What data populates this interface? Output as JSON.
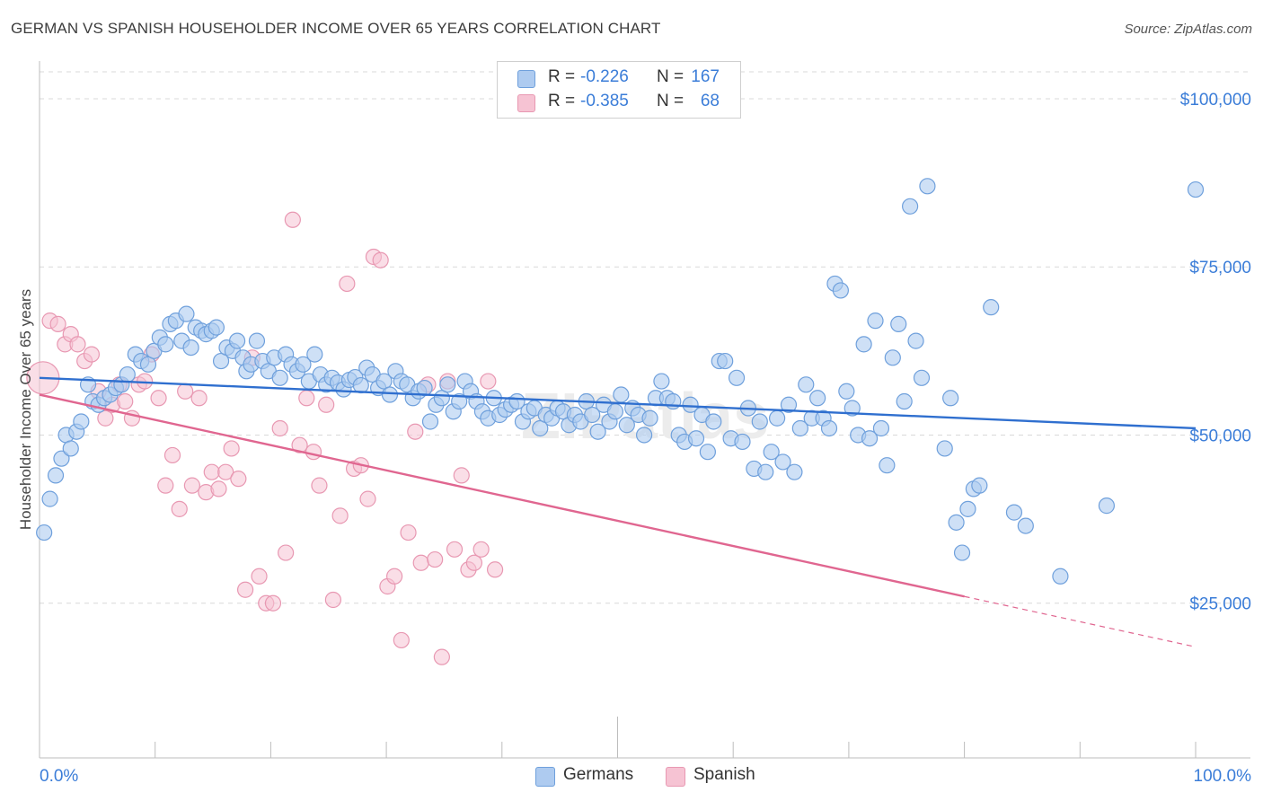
{
  "title": "GERMAN VS SPANISH HOUSEHOLDER INCOME OVER 65 YEARS CORRELATION CHART",
  "source": "Source: ZipAtlas.com",
  "watermark": "ZIPatlas",
  "colors": {
    "germans_fill": "#aecbf0",
    "germans_stroke": "#6fa0dc",
    "germans_line": "#2f6fcf",
    "spanish_fill": "#f6c3d3",
    "spanish_stroke": "#e898b2",
    "spanish_line": "#e06690",
    "axis_text": "#3b7dd8",
    "grid": "#d9d9d9"
  },
  "legend": {
    "rows": [
      {
        "series": "Germans",
        "r_label": "R =",
        "r_value": "-0.226",
        "n_label": "N =",
        "n_value": "167"
      },
      {
        "series": "Spanish",
        "r_label": "R =",
        "r_value": "-0.385",
        "n_label": "N =",
        "n_value": "68"
      }
    ]
  },
  "bottom_legend": {
    "germans": "Germans",
    "spanish": "Spanish"
  },
  "chart_data": {
    "type": "scatter",
    "title": "GERMAN VS SPANISH HOUSEHOLDER INCOME OVER 65 YEARS CORRELATION CHART",
    "xlabel": "",
    "ylabel": "Householder Income Over 65 years",
    "xlim": [
      0,
      100
    ],
    "ylim": [
      2000,
      104000
    ],
    "x_tick_labels": [
      "0.0%",
      "100.0%"
    ],
    "y_ticks": [
      25000,
      50000,
      75000,
      100000
    ],
    "y_tick_labels": [
      "$25,000",
      "$50,000",
      "$75,000",
      "$100,000"
    ],
    "grid": true,
    "legend_position": "top-center",
    "series": [
      {
        "name": "Germans",
        "trend": {
          "x": [
            0,
            100
          ],
          "y": [
            58500,
            51000
          ]
        },
        "points": [
          [
            0.4,
            35500
          ],
          [
            0.9,
            40500
          ],
          [
            1.4,
            44000
          ],
          [
            1.9,
            46500
          ],
          [
            2.3,
            50000
          ],
          [
            2.7,
            48000
          ],
          [
            3.2,
            50500
          ],
          [
            3.6,
            52000
          ],
          [
            4.2,
            57500
          ],
          [
            4.6,
            55000
          ],
          [
            5.1,
            54500
          ],
          [
            5.6,
            55500
          ],
          [
            6.1,
            56000
          ],
          [
            6.6,
            57000
          ],
          [
            7.1,
            57500
          ],
          [
            7.6,
            59000
          ],
          [
            8.3,
            62000
          ],
          [
            8.8,
            61000
          ],
          [
            9.4,
            60500
          ],
          [
            9.9,
            62500
          ],
          [
            10.4,
            64500
          ],
          [
            10.9,
            63500
          ],
          [
            11.3,
            66500
          ],
          [
            11.8,
            67000
          ],
          [
            12.3,
            64000
          ],
          [
            12.7,
            68000
          ],
          [
            13.1,
            63000
          ],
          [
            13.5,
            66000
          ],
          [
            14.0,
            65500
          ],
          [
            14.4,
            65000
          ],
          [
            14.9,
            65500
          ],
          [
            15.3,
            66000
          ],
          [
            15.7,
            61000
          ],
          [
            16.2,
            63000
          ],
          [
            16.7,
            62500
          ],
          [
            17.1,
            64000
          ],
          [
            17.6,
            61500
          ],
          [
            17.9,
            59500
          ],
          [
            18.3,
            60500
          ],
          [
            18.8,
            64000
          ],
          [
            19.3,
            61000
          ],
          [
            19.8,
            59500
          ],
          [
            20.3,
            61500
          ],
          [
            20.8,
            58500
          ],
          [
            21.3,
            62000
          ],
          [
            21.8,
            60500
          ],
          [
            22.3,
            59500
          ],
          [
            22.8,
            60500
          ],
          [
            23.3,
            58000
          ],
          [
            23.8,
            62000
          ],
          [
            24.3,
            59000
          ],
          [
            24.8,
            57500
          ],
          [
            25.3,
            58500
          ],
          [
            25.8,
            57800
          ],
          [
            26.3,
            56800
          ],
          [
            26.8,
            58200
          ],
          [
            27.3,
            58600
          ],
          [
            27.8,
            57400
          ],
          [
            28.3,
            60000
          ],
          [
            28.8,
            59000
          ],
          [
            29.3,
            57000
          ],
          [
            29.8,
            58000
          ],
          [
            30.3,
            56000
          ],
          [
            30.8,
            59500
          ],
          [
            31.3,
            58000
          ],
          [
            31.8,
            57500
          ],
          [
            32.3,
            55500
          ],
          [
            32.8,
            56500
          ],
          [
            33.3,
            57000
          ],
          [
            33.8,
            52000
          ],
          [
            34.3,
            54500
          ],
          [
            34.8,
            55500
          ],
          [
            35.3,
            57500
          ],
          [
            35.8,
            53500
          ],
          [
            36.3,
            55000
          ],
          [
            36.8,
            58000
          ],
          [
            37.3,
            56500
          ],
          [
            37.8,
            55000
          ],
          [
            38.3,
            53500
          ],
          [
            38.8,
            52500
          ],
          [
            39.3,
            55500
          ],
          [
            39.8,
            53000
          ],
          [
            40.3,
            53800
          ],
          [
            40.8,
            54500
          ],
          [
            41.3,
            55000
          ],
          [
            41.8,
            52000
          ],
          [
            42.3,
            53500
          ],
          [
            42.8,
            54000
          ],
          [
            43.3,
            51000
          ],
          [
            43.8,
            53000
          ],
          [
            44.3,
            52500
          ],
          [
            44.8,
            54000
          ],
          [
            45.3,
            53500
          ],
          [
            45.8,
            51500
          ],
          [
            46.3,
            53000
          ],
          [
            46.8,
            52000
          ],
          [
            47.3,
            55000
          ],
          [
            47.8,
            53000
          ],
          [
            48.3,
            50500
          ],
          [
            48.8,
            54500
          ],
          [
            49.3,
            52000
          ],
          [
            49.8,
            53500
          ],
          [
            50.3,
            56000
          ],
          [
            50.8,
            51500
          ],
          [
            51.3,
            54000
          ],
          [
            51.8,
            53000
          ],
          [
            52.3,
            50000
          ],
          [
            52.8,
            52500
          ],
          [
            53.3,
            55500
          ],
          [
            53.8,
            58000
          ],
          [
            54.3,
            55500
          ],
          [
            54.8,
            55000
          ],
          [
            55.3,
            50000
          ],
          [
            55.8,
            49000
          ],
          [
            56.3,
            54500
          ],
          [
            56.8,
            49500
          ],
          [
            57.3,
            53000
          ],
          [
            57.8,
            47500
          ],
          [
            58.3,
            52000
          ],
          [
            58.8,
            61000
          ],
          [
            59.3,
            61000
          ],
          [
            59.8,
            49500
          ],
          [
            60.3,
            58500
          ],
          [
            60.8,
            49000
          ],
          [
            61.3,
            54000
          ],
          [
            61.8,
            45000
          ],
          [
            62.3,
            52000
          ],
          [
            62.8,
            44500
          ],
          [
            63.3,
            47500
          ],
          [
            63.8,
            52500
          ],
          [
            64.3,
            46000
          ],
          [
            64.8,
            54500
          ],
          [
            65.3,
            44500
          ],
          [
            65.8,
            51000
          ],
          [
            66.3,
            57500
          ],
          [
            66.8,
            52500
          ],
          [
            67.3,
            55500
          ],
          [
            67.8,
            52500
          ],
          [
            68.3,
            51000
          ],
          [
            68.8,
            72500
          ],
          [
            69.3,
            71500
          ],
          [
            69.8,
            56500
          ],
          [
            70.3,
            54000
          ],
          [
            70.8,
            50000
          ],
          [
            71.3,
            63500
          ],
          [
            71.8,
            49500
          ],
          [
            72.3,
            67000
          ],
          [
            72.8,
            51000
          ],
          [
            73.3,
            45500
          ],
          [
            73.8,
            61500
          ],
          [
            74.3,
            66500
          ],
          [
            74.8,
            55000
          ],
          [
            75.3,
            84000
          ],
          [
            75.8,
            64000
          ],
          [
            76.3,
            58500
          ],
          [
            76.8,
            87000
          ],
          [
            78.3,
            48000
          ],
          [
            78.8,
            55500
          ],
          [
            79.3,
            37000
          ],
          [
            79.8,
            32500
          ],
          [
            80.3,
            39000
          ],
          [
            80.8,
            42000
          ],
          [
            81.3,
            42500
          ],
          [
            82.3,
            69000
          ],
          [
            84.3,
            38500
          ],
          [
            85.3,
            36500
          ],
          [
            88.3,
            29000
          ],
          [
            92.3,
            39500
          ],
          [
            100.0,
            86500
          ]
        ]
      },
      {
        "name": "Spanish",
        "trend": {
          "x": [
            0,
            80
          ],
          "y": [
            56000,
            26000
          ]
        },
        "trend_dashed_extension": {
          "x": [
            80,
            100
          ],
          "y": [
            26000,
            18500
          ]
        },
        "points": [
          [
            0.3,
            58500
          ],
          [
            0.9,
            67000
          ],
          [
            1.6,
            66500
          ],
          [
            2.2,
            63500
          ],
          [
            2.7,
            65000
          ],
          [
            3.3,
            63500
          ],
          [
            3.9,
            61000
          ],
          [
            4.5,
            62000
          ],
          [
            5.1,
            56500
          ],
          [
            5.7,
            52500
          ],
          [
            6.3,
            54500
          ],
          [
            6.9,
            57500
          ],
          [
            7.4,
            55000
          ],
          [
            8.0,
            52500
          ],
          [
            8.6,
            57500
          ],
          [
            9.1,
            58000
          ],
          [
            9.7,
            62000
          ],
          [
            10.3,
            55500
          ],
          [
            10.9,
            42500
          ],
          [
            11.5,
            47000
          ],
          [
            12.1,
            39000
          ],
          [
            12.6,
            56500
          ],
          [
            13.2,
            42500
          ],
          [
            13.8,
            55500
          ],
          [
            14.4,
            41500
          ],
          [
            14.9,
            44500
          ],
          [
            15.5,
            42000
          ],
          [
            16.1,
            44500
          ],
          [
            16.6,
            48000
          ],
          [
            17.2,
            43500
          ],
          [
            17.8,
            27000
          ],
          [
            18.4,
            61500
          ],
          [
            19.0,
            29000
          ],
          [
            19.6,
            25000
          ],
          [
            20.2,
            25000
          ],
          [
            20.8,
            51000
          ],
          [
            21.3,
            32500
          ],
          [
            21.9,
            82000
          ],
          [
            22.5,
            48500
          ],
          [
            23.1,
            55500
          ],
          [
            23.7,
            47500
          ],
          [
            24.2,
            42500
          ],
          [
            24.8,
            54500
          ],
          [
            25.4,
            25500
          ],
          [
            26.0,
            38000
          ],
          [
            26.6,
            72500
          ],
          [
            27.2,
            45000
          ],
          [
            27.8,
            45500
          ],
          [
            28.4,
            40500
          ],
          [
            28.9,
            76500
          ],
          [
            29.5,
            76000
          ],
          [
            30.1,
            27500
          ],
          [
            30.7,
            29000
          ],
          [
            31.3,
            19500
          ],
          [
            31.9,
            35500
          ],
          [
            32.5,
            50500
          ],
          [
            33.0,
            31000
          ],
          [
            33.6,
            57500
          ],
          [
            34.2,
            31500
          ],
          [
            34.8,
            17000
          ],
          [
            35.3,
            58000
          ],
          [
            35.9,
            33000
          ],
          [
            36.5,
            44000
          ],
          [
            37.1,
            30000
          ],
          [
            37.6,
            31000
          ],
          [
            38.2,
            33000
          ],
          [
            38.8,
            58000
          ],
          [
            39.4,
            30000
          ]
        ]
      }
    ]
  }
}
